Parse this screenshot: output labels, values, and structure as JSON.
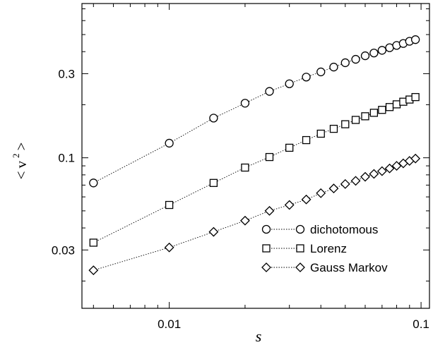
{
  "chart_data": {
    "type": "scatter",
    "title": "",
    "xlabel": "s",
    "ylabel": {
      "open": "<",
      "symbol": "v",
      "power": "2",
      "close": ">"
    },
    "xscale": "log",
    "yscale": "log",
    "xlim": [
      0.0045,
      0.108
    ],
    "ylim": [
      0.014,
      0.75
    ],
    "xticks": [
      {
        "value": 0.01,
        "label": "0.01"
      },
      {
        "value": 0.1,
        "label": "0.1"
      }
    ],
    "yticks": [
      {
        "value": 0.03,
        "label": "0.03"
      },
      {
        "value": 0.1,
        "label": "0.1"
      },
      {
        "value": 0.3,
        "label": "0.3"
      }
    ],
    "grid": false,
    "legend_position": "bottom-right",
    "series": [
      {
        "name": "dichotomous",
        "marker": "circle",
        "x": [
          0.005,
          0.01,
          0.015,
          0.02,
          0.025,
          0.03,
          0.035,
          0.04,
          0.045,
          0.05,
          0.055,
          0.06,
          0.065,
          0.07,
          0.075,
          0.08,
          0.085,
          0.09,
          0.095
        ],
        "y": [
          0.072,
          0.121,
          0.168,
          0.204,
          0.238,
          0.263,
          0.287,
          0.307,
          0.327,
          0.346,
          0.362,
          0.379,
          0.393,
          0.407,
          0.421,
          0.434,
          0.445,
          0.458,
          0.468
        ]
      },
      {
        "name": "Lorenz",
        "marker": "square",
        "x": [
          0.005,
          0.01,
          0.015,
          0.02,
          0.025,
          0.03,
          0.035,
          0.04,
          0.045,
          0.05,
          0.055,
          0.06,
          0.065,
          0.07,
          0.075,
          0.08,
          0.085,
          0.09,
          0.095
        ],
        "y": [
          0.033,
          0.054,
          0.072,
          0.088,
          0.101,
          0.114,
          0.126,
          0.137,
          0.146,
          0.155,
          0.164,
          0.172,
          0.18,
          0.187,
          0.194,
          0.201,
          0.208,
          0.214,
          0.221
        ]
      },
      {
        "name": "Gauss Markov",
        "marker": "diamond",
        "x": [
          0.005,
          0.01,
          0.015,
          0.02,
          0.025,
          0.03,
          0.035,
          0.04,
          0.045,
          0.05,
          0.055,
          0.06,
          0.065,
          0.07,
          0.075,
          0.08,
          0.085,
          0.09,
          0.095
        ],
        "y": [
          0.023,
          0.031,
          0.038,
          0.044,
          0.05,
          0.054,
          0.058,
          0.063,
          0.067,
          0.071,
          0.074,
          0.078,
          0.081,
          0.084,
          0.087,
          0.09,
          0.093,
          0.096,
          0.099
        ]
      }
    ]
  }
}
